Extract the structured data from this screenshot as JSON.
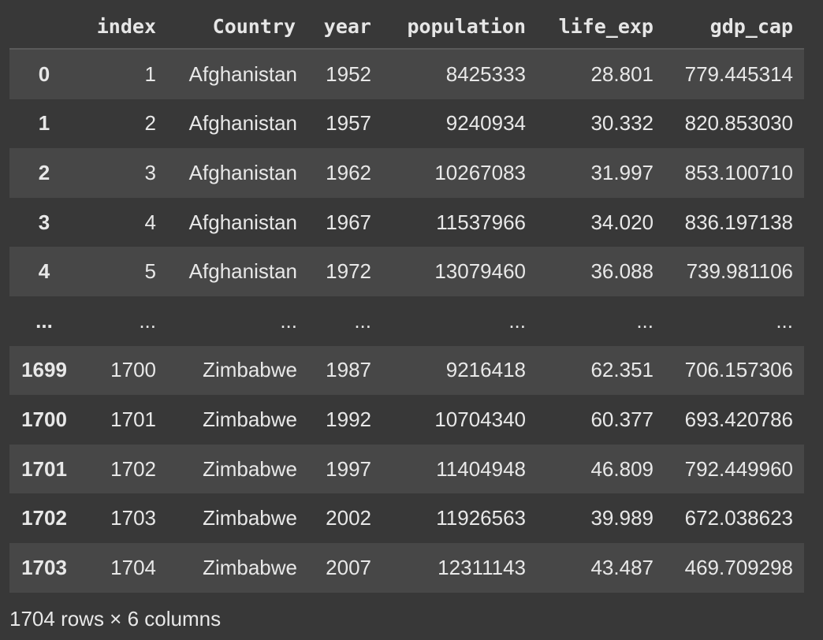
{
  "table": {
    "columns": [
      "",
      "index",
      "Country",
      "year",
      "population",
      "life_exp",
      "gdp_cap"
    ],
    "rows": [
      [
        "0",
        "1",
        "Afghanistan",
        "1952",
        "8425333",
        "28.801",
        "779.445314"
      ],
      [
        "1",
        "2",
        "Afghanistan",
        "1957",
        "9240934",
        "30.332",
        "820.853030"
      ],
      [
        "2",
        "3",
        "Afghanistan",
        "1962",
        "10267083",
        "31.997",
        "853.100710"
      ],
      [
        "3",
        "4",
        "Afghanistan",
        "1967",
        "11537966",
        "34.020",
        "836.197138"
      ],
      [
        "4",
        "5",
        "Afghanistan",
        "1972",
        "13079460",
        "36.088",
        "739.981106"
      ],
      [
        "...",
        "...",
        "...",
        "...",
        "...",
        "...",
        "..."
      ],
      [
        "1699",
        "1700",
        "Zimbabwe",
        "1987",
        "9216418",
        "62.351",
        "706.157306"
      ],
      [
        "1700",
        "1701",
        "Zimbabwe",
        "1992",
        "10704340",
        "60.377",
        "693.420786"
      ],
      [
        "1701",
        "1702",
        "Zimbabwe",
        "1997",
        "11404948",
        "46.809",
        "792.449960"
      ],
      [
        "1702",
        "1703",
        "Zimbabwe",
        "2002",
        "11926563",
        "39.989",
        "672.038623"
      ],
      [
        "1703",
        "1704",
        "Zimbabwe",
        "2007",
        "12311143",
        "43.487",
        "469.709298"
      ]
    ]
  },
  "footer": {
    "shape_text": "1704 rows × 6 columns"
  },
  "colors": {
    "background": "#383838",
    "row_stripe": "#474747",
    "text": "#e8e8e8",
    "header_rule": "#5a5a5a"
  }
}
